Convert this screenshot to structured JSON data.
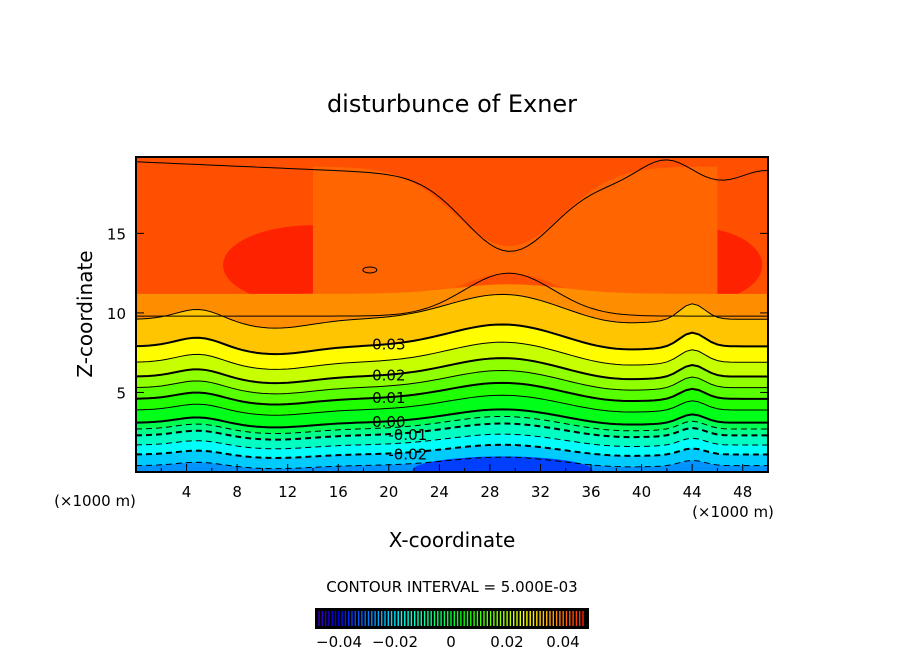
{
  "chart_data": {
    "type": "contour",
    "title": "disturbunce of Exner",
    "xlabel": "X-coordinate",
    "ylabel": "Z-coordinate",
    "x_unit_label": "(×1000 m)",
    "y_unit_label": "(×1000 m)",
    "xlim": [
      0,
      50
    ],
    "ylim": [
      0,
      19.8
    ],
    "xticks": [
      4,
      8,
      12,
      16,
      20,
      24,
      28,
      32,
      36,
      40,
      44,
      48
    ],
    "yticks": [
      5,
      10,
      15
    ],
    "contour_interval_text": "CONTOUR INTERVAL = 5.000E-03",
    "contour_levels": [
      -0.025,
      -0.02,
      -0.015,
      -0.01,
      -0.005,
      0.0,
      0.005,
      0.01,
      0.015,
      0.02,
      0.025,
      0.03,
      0.035,
      0.04
    ],
    "contour_level_heights": [
      0.4,
      1.1,
      1.7,
      2.3,
      2.7,
      3.1,
      3.9,
      4.6,
      5.3,
      6.0,
      6.9,
      7.9,
      9.6,
      12.0
    ],
    "contour_labels": [
      {
        "text": "0.03",
        "value": 0.03
      },
      {
        "text": "0.02",
        "value": 0.02
      },
      {
        "text": "0.01",
        "value": 0.01
      },
      {
        "text": "0.00",
        "value": 0.0
      },
      {
        "text": "-0.01",
        "value": -0.01
      },
      {
        "text": "-0.02",
        "value": -0.02
      }
    ],
    "colorbar": {
      "range": [
        -0.05,
        0.05
      ],
      "ticks": [
        -0.04,
        -0.02,
        0,
        0.02,
        0.04
      ],
      "tick_labels": [
        "−0.04",
        "−0.02",
        "0",
        "0.02",
        "0.04"
      ]
    }
  }
}
